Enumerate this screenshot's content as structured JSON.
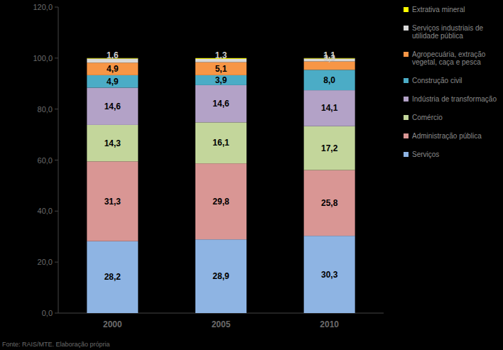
{
  "chart_data": {
    "type": "bar",
    "stacked": true,
    "data_labels": true,
    "legend": "right",
    "grid": false,
    "categories": [
      "2000",
      "2005",
      "2010"
    ],
    "ylim": [
      0,
      120
    ],
    "yticks": [
      {
        "value": 0,
        "label": "0,0"
      },
      {
        "value": 20,
        "label": "20,0"
      },
      {
        "value": 40,
        "label": "40,0"
      },
      {
        "value": 60,
        "label": "60,0"
      },
      {
        "value": 80,
        "label": "80,0"
      },
      {
        "value": 100,
        "label": "100,0"
      },
      {
        "value": 120,
        "label": "120,0"
      }
    ],
    "series": [
      {
        "name": "Serviços",
        "color": "#8eb4e3",
        "values": [
          28.2,
          28.9,
          30.3
        ],
        "value_labels": [
          "28,2",
          "28,9",
          "30,3"
        ]
      },
      {
        "name": "Administração pública",
        "color": "#d99694",
        "values": [
          31.3,
          29.8,
          25.8
        ],
        "value_labels": [
          "31,3",
          "29,8",
          "25,8"
        ]
      },
      {
        "name": "Comércio",
        "color": "#c3d69b",
        "values": [
          14.3,
          16.1,
          17.2
        ],
        "value_labels": [
          "14,3",
          "16,1",
          "17,2"
        ]
      },
      {
        "name": "Indústria de transformação",
        "color": "#b3a2c7",
        "values": [
          14.6,
          14.6,
          14.1
        ],
        "value_labels": [
          "14,6",
          "14,6",
          "14,1"
        ]
      },
      {
        "name": "Construção civil",
        "color": "#4bacc6",
        "values": [
          4.9,
          3.9,
          8.0
        ],
        "value_labels": [
          "4,9",
          "3,9",
          "8,0"
        ]
      },
      {
        "name": "Agropecuária, extração vegetal, caça e pesca",
        "color": "#f79646",
        "values": [
          4.9,
          5.1,
          3.3
        ],
        "value_labels": [
          "4,9",
          "5,1",
          "3,3"
        ]
      },
      {
        "name": "Serviços industriais de utilidade pública",
        "color": "#d9d9d9",
        "values": [
          1.6,
          1.3,
          1.1
        ],
        "value_labels": [
          "1,6",
          "1,3",
          "1,1"
        ]
      },
      {
        "name": "Extrativa mineral",
        "color": "#ffff00",
        "values": [
          0.2,
          0.3,
          0.2
        ],
        "data_labels": false
      }
    ],
    "source": "Fonte: RAIS/MTE. Elaboração própria"
  }
}
